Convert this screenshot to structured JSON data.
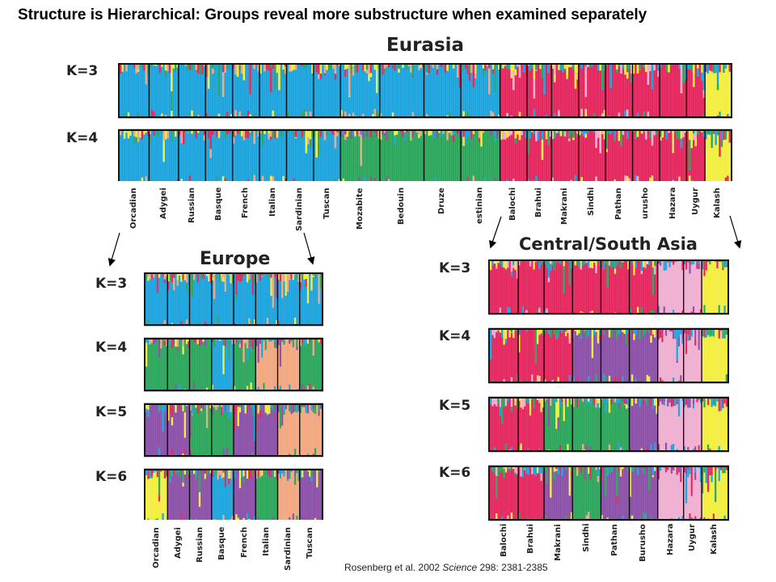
{
  "slide": {
    "title": "Structure is Hierarchical: Groups reveal more substructure when examined separately"
  },
  "citation": {
    "authors": "Rosenberg et al. 2002 ",
    "journal": "Science",
    "ref": " 298: 2381-2385"
  },
  "colors": {
    "blue": "#1ba3de",
    "red": "#e5255d",
    "yellow": "#f3ee3d",
    "green": "#2aa65a",
    "orange": "#f2a77e",
    "purple": "#8b4fa8",
    "pink": "#f0aed1",
    "border": "#111111"
  },
  "chart_data": [
    {
      "type": "bar",
      "title": "Eurasia",
      "categories": [
        "Orcadian",
        "Adygei",
        "Russian",
        "Basque",
        "French",
        "Italian",
        "Sardinian",
        "Tuscan",
        "Mozabite",
        "Bedouin",
        "Druze",
        "Palestinian",
        "Balochi",
        "Brahui",
        "Makrani",
        "Sindhi",
        "Pathan",
        "Burusho",
        "Hazara",
        "Uygur",
        "Kalash"
      ],
      "category_labels": [
        "Orcadian",
        "Adygei",
        "Russian",
        "Basque",
        "French",
        "Italian",
        "Sardinian",
        "Tuscan",
        "Mozabite",
        "Bedouin",
        "Druze",
        "estinian",
        "Balochi",
        "Brahui",
        "Makrani",
        "Sindhi",
        "Pathan",
        "urusho",
        "Hazara",
        "Uygur",
        "Kalash"
      ],
      "rows": [
        {
          "label": "K=3",
          "dominant": [
            "blue",
            "blue",
            "blue",
            "blue",
            "blue",
            "blue",
            "blue",
            "blue",
            "blue",
            "blue",
            "blue",
            "blue",
            "red",
            "red",
            "red",
            "red",
            "red",
            "red",
            "red",
            "red",
            "yellow"
          ]
        },
        {
          "label": "K=4",
          "dominant": [
            "blue",
            "blue",
            "blue",
            "blue",
            "blue",
            "blue",
            "blue",
            "blue",
            "green",
            "green",
            "green",
            "green",
            "red",
            "red",
            "red",
            "red",
            "red",
            "red",
            "red",
            "red",
            "yellow"
          ]
        }
      ]
    },
    {
      "type": "bar",
      "title": "Europe",
      "categories": [
        "Orcadian",
        "Adygei",
        "Russian",
        "Basque",
        "French",
        "Italian",
        "Sardinian",
        "Tuscan"
      ],
      "rows": [
        {
          "label": "K=3",
          "dominant": [
            "blue",
            "blue",
            "blue",
            "blue",
            "blue",
            "blue",
            "blue",
            "blue"
          ]
        },
        {
          "label": "K=4",
          "dominant": [
            "green",
            "green",
            "green",
            "blue",
            "green",
            "orange",
            "orange",
            "green"
          ]
        },
        {
          "label": "K=5",
          "dominant": [
            "purple",
            "purple",
            "green",
            "green",
            "purple",
            "purple",
            "orange",
            "orange"
          ]
        },
        {
          "label": "K=6",
          "dominant": [
            "yellow",
            "purple",
            "purple",
            "blue",
            "purple",
            "green",
            "orange",
            "purple"
          ]
        }
      ]
    },
    {
      "type": "bar",
      "title": "Central/South Asia",
      "categories": [
        "Balochi",
        "Brahui",
        "Makrani",
        "Sindhi",
        "Pathan",
        "Burusho",
        "Hazara",
        "Uygur",
        "Kalash"
      ],
      "rows": [
        {
          "label": "K=3",
          "dominant": [
            "red",
            "red",
            "red",
            "red",
            "red",
            "red",
            "pink",
            "pink",
            "yellow"
          ]
        },
        {
          "label": "K=4",
          "dominant": [
            "red",
            "red",
            "red",
            "purple",
            "purple",
            "purple",
            "pink",
            "pink",
            "yellow"
          ]
        },
        {
          "label": "K=5",
          "dominant": [
            "red",
            "red",
            "green",
            "green",
            "green",
            "purple",
            "pink",
            "pink",
            "yellow"
          ]
        },
        {
          "label": "K=6",
          "dominant": [
            "red",
            "red",
            "purple",
            "green",
            "purple",
            "purple",
            "pink",
            "pink",
            "yellow"
          ]
        }
      ]
    }
  ]
}
